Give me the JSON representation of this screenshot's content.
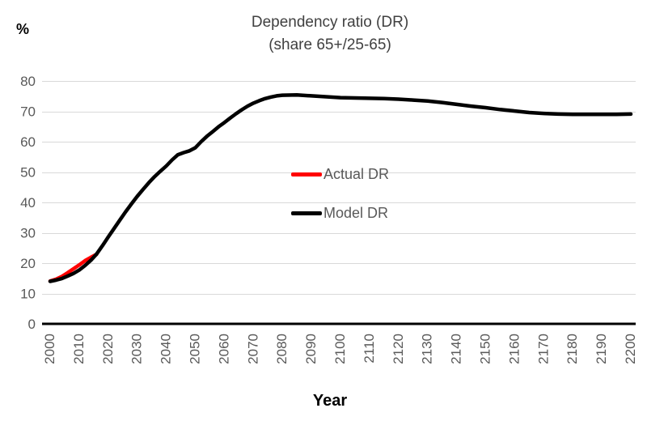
{
  "percent_label": "%",
  "title": {
    "line1": "Dependency ratio (DR)",
    "line2": "(share 65+/25-65)"
  },
  "xlabel": "Year",
  "legend": [
    {
      "label": "Actual DR",
      "color": "#ff0000"
    },
    {
      "label": "Model DR",
      "color": "#000000"
    }
  ],
  "colors": {
    "gridline": "#d9d9d9",
    "axis_line": "#000000",
    "tick_label": "#595959",
    "title_text": "#404040"
  },
  "chart_data": {
    "type": "line",
    "title": "Dependency ratio (DR) (share 65+/25-65)",
    "xlabel": "Year",
    "ylabel": "%",
    "xlim": [
      2000,
      2200
    ],
    "ylim": [
      0,
      80
    ],
    "x_ticks": [
      2000,
      2010,
      2020,
      2030,
      2040,
      2050,
      2060,
      2070,
      2080,
      2090,
      2100,
      2110,
      2120,
      2130,
      2140,
      2150,
      2160,
      2170,
      2180,
      2190,
      2200
    ],
    "y_ticks": [
      0,
      10,
      20,
      30,
      40,
      50,
      60,
      70,
      80
    ],
    "grid": "horizontal",
    "legend_position": "center",
    "series": [
      {
        "name": "Actual DR",
        "color": "#ff0000",
        "width": 4.5,
        "x": [
          2000,
          2002,
          2004,
          2006,
          2008,
          2010,
          2012,
          2014,
          2016
        ],
        "y": [
          14.1,
          14.7,
          15.6,
          16.8,
          18.1,
          19.4,
          20.8,
          21.9,
          22.9
        ]
      },
      {
        "name": "Model DR",
        "color": "#000000",
        "width": 4.5,
        "x": [
          2000,
          2002,
          2004,
          2006,
          2008,
          2010,
          2012,
          2014,
          2016,
          2018,
          2020,
          2022,
          2024,
          2026,
          2028,
          2030,
          2032,
          2034,
          2036,
          2038,
          2040,
          2042,
          2044,
          2046,
          2048,
          2050,
          2052,
          2054,
          2056,
          2058,
          2060,
          2062,
          2064,
          2066,
          2068,
          2070,
          2072,
          2074,
          2076,
          2078,
          2080,
          2085,
          2090,
          2095,
          2100,
          2105,
          2110,
          2115,
          2120,
          2125,
          2130,
          2135,
          2140,
          2145,
          2150,
          2155,
          2160,
          2165,
          2170,
          2175,
          2180,
          2185,
          2190,
          2195,
          2200
        ],
        "y": [
          14.0,
          14.4,
          14.9,
          15.7,
          16.6,
          17.7,
          19.2,
          20.9,
          23.0,
          25.7,
          28.6,
          31.4,
          34.2,
          36.9,
          39.5,
          42.0,
          44.3,
          46.5,
          48.5,
          50.3,
          52.0,
          54.0,
          55.7,
          56.4,
          57.0,
          58.0,
          60.0,
          61.8,
          63.3,
          64.9,
          66.3,
          67.8,
          69.2,
          70.5,
          71.7,
          72.7,
          73.5,
          74.2,
          74.7,
          75.1,
          75.3,
          75.4,
          75.1,
          74.8,
          74.5,
          74.4,
          74.3,
          74.2,
          74.0,
          73.7,
          73.4,
          72.9,
          72.3,
          71.7,
          71.2,
          70.6,
          70.1,
          69.6,
          69.3,
          69.1,
          69.0,
          69.0,
          69.0,
          69.0,
          69.1
        ]
      }
    ]
  }
}
